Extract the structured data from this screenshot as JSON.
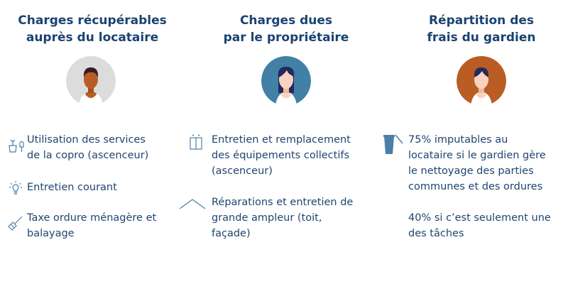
{
  "columns": [
    {
      "title_l1": "Charges récupérables",
      "title_l2": "auprès du locataire",
      "avatar_bg": "#dcdcdc",
      "items": [
        {
          "icon": "plant-tool-icon",
          "l1": "Utilisation des services",
          "l2": "de la copro (ascenceur)"
        },
        {
          "icon": "lightbulb-icon",
          "l1": "Entretien courant"
        },
        {
          "icon": "broom-icon",
          "l1": "Taxe ordure ménagère et",
          "l2": "balayage"
        }
      ]
    },
    {
      "title_l1": "Charges dues",
      "title_l2": "par le propriétaire",
      "avatar_bg": "#4280a6",
      "items": [
        {
          "icon": "elevator-icon",
          "l1": "Entretien et remplacement",
          "l2": "des équipements collectifs",
          "l3": "(ascenceur)"
        },
        {
          "icon": "roof-icon",
          "l1": "Réparations et entretien de",
          "l2": "grande ampleur (toit,",
          "l3": "façade)"
        }
      ]
    },
    {
      "title_l1": "Répartition des",
      "title_l2": "frais du gardien",
      "avatar_bg": "#b95d24",
      "items": [
        {
          "icon": "trash-bin-icon",
          "l1": "75% imputables au",
          "l2": "locataire si le gardien gère",
          "l3": "le nettoyage des parties",
          "l4": "communes et des ordures"
        },
        {
          "l1": "40% si c’est seulement une",
          "l2": "des tâches"
        }
      ]
    }
  ]
}
